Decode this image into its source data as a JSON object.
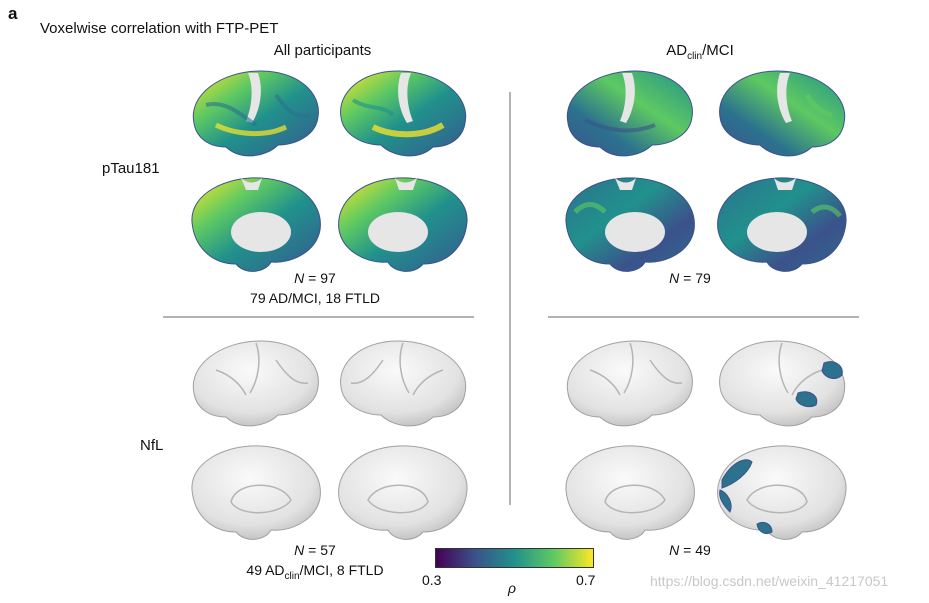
{
  "figure": {
    "panel_letter": "a",
    "title": "Voxelwise correlation with FTP-PET"
  },
  "columns": {
    "left_title": "All participants",
    "right_title_main": "AD",
    "right_title_sub": "clin",
    "right_title_suffix": "/MCI"
  },
  "rows": {
    "top_label": "pTau181",
    "bottom_label": "NfL"
  },
  "annotations": {
    "ptau_all_n_italic": "N",
    "ptau_all_n_value": " = 97",
    "ptau_all_breakdown": "79 AD/MCI, 18 FTLD",
    "ptau_ad_n_italic": "N",
    "ptau_ad_n_value": " = 79",
    "nfl_all_n_italic": "N",
    "nfl_all_n_value": " = 57",
    "nfl_all_breakdown_pre": "49 AD",
    "nfl_all_breakdown_sub": "clin",
    "nfl_all_breakdown_post": "/MCI, 8 FTLD",
    "nfl_ad_n_italic": "N",
    "nfl_ad_n_value": " = 49"
  },
  "colorbar": {
    "min_label": "0.3",
    "max_label": "0.7",
    "symbol": "ρ",
    "colors": [
      "#440154",
      "#3b528b",
      "#21918c",
      "#5ec962",
      "#fde725"
    ]
  },
  "watermark": "https://blog.csdn.net/weixin_41217051"
}
